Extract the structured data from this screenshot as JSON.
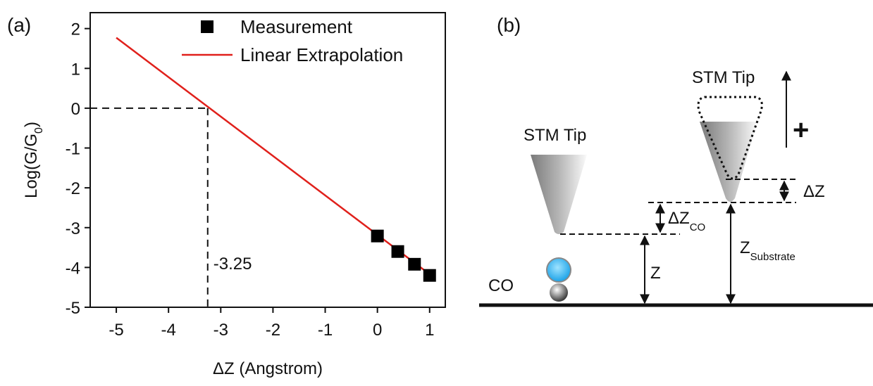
{
  "panel_labels": [
    "(a)",
    "(b)"
  ],
  "chart_data": {
    "type": "scatter",
    "x_label": "ΔZ (Angstrom)",
    "y_label": [
      "Log(G/G",
      "0",
      ")"
    ],
    "xlim": [
      -5.5,
      1.3
    ],
    "ylim": [
      -5,
      2.4
    ],
    "xticks": [
      -5,
      -4,
      -3,
      -2,
      -1,
      0,
      1
    ],
    "yticks": [
      -5,
      -4,
      -3,
      -2,
      -1,
      0,
      1,
      2
    ],
    "x_intercept": -3.25,
    "series": [
      {
        "name": "Measurement",
        "color": "#000000",
        "marker": "square",
        "x": [
          0,
          0.39,
          0.71,
          1
        ],
        "values": [
          -3.21,
          -3.6,
          -3.92,
          -4.2
        ]
      },
      {
        "name": "Linear Extrapolation",
        "color": "#e0201b",
        "marker": "line",
        "x": [
          -5,
          1
        ],
        "values": [
          1.77,
          -4.17
        ]
      }
    ]
  },
  "diagram": {
    "tip_left": "STM Tip",
    "tip_right": "STM Tip",
    "plus": "+",
    "dz": "ΔZ",
    "dz_co": [
      "ΔZ",
      "CO"
    ],
    "z_substrate": [
      "Z",
      "Substrate"
    ],
    "z": "Z",
    "co": "CO"
  }
}
